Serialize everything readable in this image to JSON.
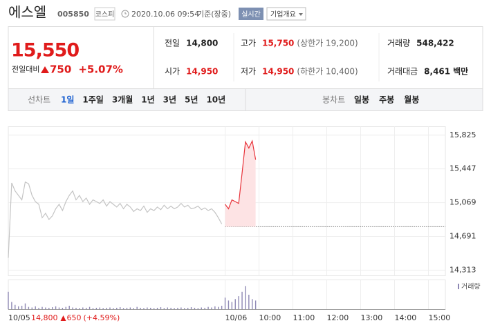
{
  "header": {
    "name": "에스엘",
    "code": "005850",
    "market": "코스피",
    "datetime": "2020.10.06 09:54",
    "basis": "기준(장중)",
    "realtime": "실시간",
    "company": "기업개요"
  },
  "price": {
    "current": "15,550",
    "change_label": "전일대비",
    "change": "750",
    "rate": "+5.07%",
    "color": "#e01b1b"
  },
  "stats": [
    {
      "label": "전일",
      "value": "14,800",
      "color": "#222222"
    },
    {
      "label": "고가",
      "value": "15,750",
      "extra": "(상한가 19,200)",
      "color": "#e01b1b"
    },
    {
      "label": "거래량",
      "value": "548,422",
      "color": "#222222"
    },
    {
      "label": "시가",
      "value": "14,950",
      "color": "#e01b1b"
    },
    {
      "label": "저가",
      "value": "14,950",
      "extra": "(하한가 10,400)",
      "color": "#e01b1b"
    },
    {
      "label": "거래대금",
      "value": "8,461",
      "unit": "백만",
      "color": "#222222"
    }
  ],
  "tabs": {
    "line_label": "선차트",
    "periods": [
      "1일",
      "1주일",
      "3개월",
      "1년",
      "3년",
      "5년",
      "10년"
    ],
    "selected_period": 0,
    "candle_label": "봉차트",
    "candles": [
      "일봉",
      "주봉",
      "월봉"
    ]
  },
  "chart_data": {
    "type": "line",
    "categories": [
      "10/05",
      null,
      null,
      null,
      null,
      null,
      null,
      null,
      null,
      null,
      null,
      null,
      null,
      null,
      null,
      null,
      null,
      null,
      null,
      null,
      null,
      null,
      null,
      null,
      null,
      null,
      null,
      null,
      null,
      null,
      null,
      null,
      null,
      null,
      null,
      null,
      null,
      null,
      null,
      null,
      null,
      null,
      null,
      null,
      null,
      null,
      null,
      null,
      null,
      null,
      null,
      null,
      null,
      null,
      null,
      null,
      null,
      null,
      null,
      null,
      null,
      null,
      null,
      null,
      "10/06",
      null,
      null,
      null,
      null,
      null,
      null,
      null,
      null,
      null,
      "10:00",
      null,
      null,
      null,
      null,
      null,
      null,
      null,
      null,
      null,
      "11:00",
      null,
      null,
      null,
      null,
      null,
      null,
      null,
      null,
      null,
      "12:00",
      null,
      null,
      null,
      null,
      null,
      null,
      null,
      null,
      null,
      "13:00",
      null,
      null,
      null,
      null,
      null,
      null,
      null,
      null,
      null,
      "14:00",
      null,
      null,
      null,
      null,
      null,
      null,
      null,
      null,
      null,
      "15:00",
      null,
      null,
      null,
      null,
      null
    ],
    "series": [
      {
        "color": "#c4c4c4",
        "values": [
          14450,
          15290,
          15200,
          15150,
          15100,
          15300,
          15280,
          15150,
          15080,
          15050,
          14900,
          14950,
          14880,
          14920,
          15000,
          15050,
          14980,
          15080,
          15150,
          15200,
          15100,
          15150,
          15080,
          15120,
          15050,
          15100,
          15080,
          15060,
          15100,
          15030,
          15080,
          15050,
          15020,
          15060,
          15000,
          15050,
          15020,
          14970,
          15000,
          14980,
          15030,
          14960,
          15000,
          14980,
          15020,
          14990,
          15040,
          15000,
          15030,
          15000,
          15020,
          15060,
          15020,
          15040,
          15000,
          15010,
          15030,
          14990,
          15010,
          14980,
          15000,
          14960,
          14900,
          14830,
          null,
          null,
          null,
          null,
          null,
          null,
          null,
          null,
          null,
          null,
          null,
          null,
          null,
          null,
          null,
          null,
          null,
          null,
          null,
          null,
          null,
          null,
          null,
          null,
          null,
          null,
          null,
          null,
          null,
          null,
          null,
          null,
          null,
          null,
          null,
          null,
          null,
          null,
          null,
          null,
          null,
          null,
          null,
          null,
          null,
          null,
          null,
          null,
          null,
          null,
          null,
          null,
          null,
          null,
          null,
          null,
          null,
          null,
          null,
          null,
          null,
          null,
          null,
          null,
          null,
          null
        ]
      },
      {
        "color": "#e8333a",
        "fill": "#fde3e4",
        "values": [
          null,
          null,
          null,
          null,
          null,
          null,
          null,
          null,
          null,
          null,
          null,
          null,
          null,
          null,
          null,
          null,
          null,
          null,
          null,
          null,
          null,
          null,
          null,
          null,
          null,
          null,
          null,
          null,
          null,
          null,
          null,
          null,
          null,
          null,
          null,
          null,
          null,
          null,
          null,
          null,
          null,
          null,
          null,
          null,
          null,
          null,
          null,
          null,
          null,
          null,
          null,
          null,
          null,
          null,
          null,
          null,
          null,
          null,
          null,
          null,
          null,
          null,
          null,
          null,
          15050,
          15000,
          15100,
          15080,
          15060,
          15400,
          15750,
          15680,
          15760,
          15550,
          null,
          null,
          null,
          null,
          null,
          null,
          null,
          null,
          null,
          null,
          null,
          null,
          null,
          null,
          null,
          null,
          null,
          null,
          null,
          null,
          null,
          null,
          null,
          null,
          null,
          null,
          null,
          null,
          null,
          null,
          null,
          null,
          null,
          null,
          null,
          null,
          null,
          null,
          null,
          null,
          null,
          null,
          null,
          null,
          null,
          null,
          null,
          null,
          null,
          null,
          null,
          null,
          null,
          null,
          null,
          null
        ]
      }
    ],
    "prev_close": 14800,
    "ylim": [
      14250,
      15920
    ],
    "yticks": [
      {
        "value": 15825,
        "label": "15,825"
      },
      {
        "value": 15447,
        "label": "15,447"
      },
      {
        "value": 15069,
        "label": "15,069"
      },
      {
        "value": 14691,
        "label": "14,691"
      },
      {
        "value": 14313,
        "label": "14,313"
      }
    ],
    "grid": true,
    "volume": {
      "name": "거래량",
      "color": "#8e88b4",
      "ylim": [
        0,
        100
      ],
      "values": [
        60,
        25,
        15,
        10,
        12,
        20,
        8,
        6,
        10,
        5,
        8,
        6,
        5,
        7,
        10,
        6,
        5,
        8,
        12,
        6,
        5,
        4,
        6,
        5,
        8,
        4,
        5,
        6,
        4,
        5,
        6,
        4,
        5,
        7,
        4,
        5,
        6,
        4,
        8,
        5,
        4,
        6,
        5,
        4,
        5,
        7,
        4,
        6,
        5,
        4,
        5,
        6,
        4,
        5,
        7,
        5,
        4,
        6,
        5,
        8,
        6,
        10,
        8,
        12,
        40,
        30,
        25,
        35,
        45,
        60,
        80,
        50,
        35,
        30,
        null,
        null,
        null,
        null,
        null,
        null,
        null,
        null,
        null,
        null,
        null,
        null,
        null,
        null,
        null,
        null,
        null,
        null,
        null,
        null,
        null,
        null,
        null,
        null,
        null,
        null,
        null,
        null,
        null,
        null,
        null,
        null,
        null,
        null,
        null,
        null,
        null,
        null,
        null,
        null,
        null,
        null,
        null,
        null,
        null,
        null,
        null,
        null,
        null,
        null,
        null,
        null,
        null,
        null,
        null,
        null
      ]
    },
    "footer": {
      "price": "14,800",
      "change": "650",
      "rate": "(+4.59%)",
      "color": "#e01b1b"
    }
  }
}
